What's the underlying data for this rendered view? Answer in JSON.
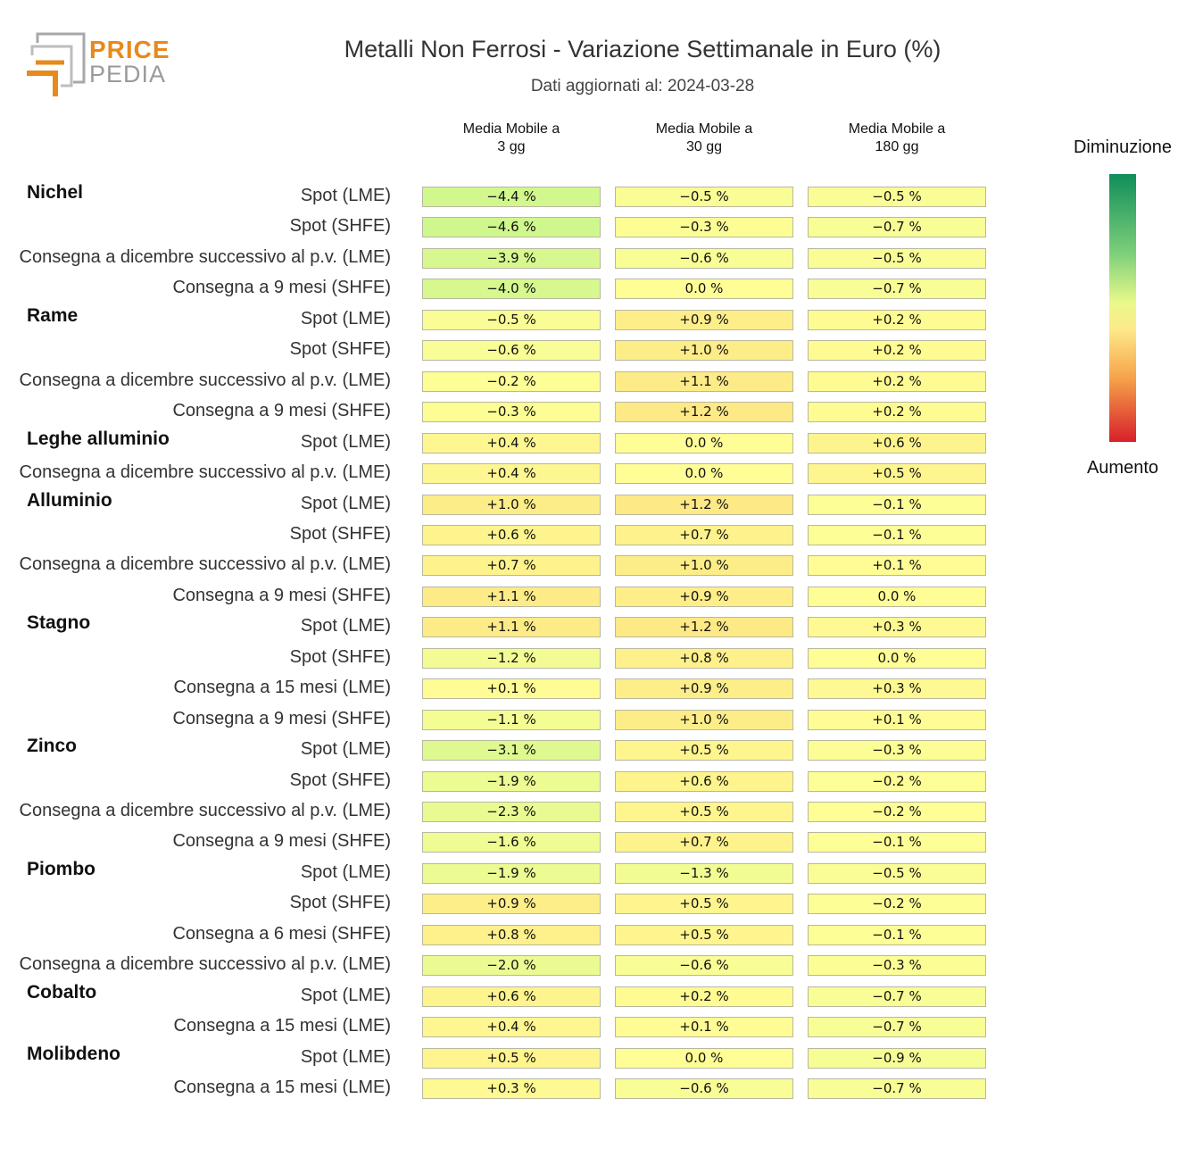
{
  "logo": {
    "word1": "PRICE",
    "word2": "PEDIA"
  },
  "chart_data": {
    "type": "table",
    "title": "Metalli Non Ferrosi - Variazione Settimanale in Euro (%)",
    "subtitle": "Dati aggiornati al: 2024-03-28",
    "columns": [
      "Media Mobile a 3 gg",
      "Media Mobile a 30 gg",
      "Media Mobile a 180 gg"
    ],
    "column_lines": [
      [
        "Media Mobile a",
        "3 gg"
      ],
      [
        "Media Mobile a",
        "30 gg"
      ],
      [
        "Media Mobile a",
        "180 gg"
      ]
    ],
    "legend": {
      "top": "Diminuzione",
      "bottom": "Aumento",
      "colors": [
        "#0f8e5a",
        "#e9f98a",
        "#fde98a",
        "#d71f2b"
      ]
    },
    "groups": [
      {
        "name": "Nichel",
        "rows": [
          {
            "label": "Spot (LME)",
            "values": [
              -4.4,
              -0.5,
              -0.5
            ]
          },
          {
            "label": "Spot (SHFE)",
            "values": [
              -4.6,
              -0.3,
              -0.7
            ]
          },
          {
            "label": "Consegna a dicembre successivo al p.v. (LME)",
            "values": [
              -3.9,
              -0.6,
              -0.5
            ]
          },
          {
            "label": "Consegna a 9 mesi (SHFE)",
            "values": [
              -4.0,
              0.0,
              -0.7
            ]
          }
        ]
      },
      {
        "name": "Rame",
        "rows": [
          {
            "label": "Spot (LME)",
            "values": [
              -0.5,
              0.9,
              0.2
            ]
          },
          {
            "label": "Spot (SHFE)",
            "values": [
              -0.6,
              1.0,
              0.2
            ]
          },
          {
            "label": "Consegna a dicembre successivo al p.v. (LME)",
            "values": [
              -0.2,
              1.1,
              0.2
            ]
          },
          {
            "label": "Consegna a 9 mesi (SHFE)",
            "values": [
              -0.3,
              1.2,
              0.2
            ]
          }
        ]
      },
      {
        "name": "Leghe alluminio",
        "rows": [
          {
            "label": "Spot (LME)",
            "values": [
              0.4,
              0.0,
              0.6
            ]
          },
          {
            "label": "Consegna a dicembre successivo al p.v. (LME)",
            "values": [
              0.4,
              0.0,
              0.5
            ]
          }
        ]
      },
      {
        "name": "Alluminio",
        "rows": [
          {
            "label": "Spot (LME)",
            "values": [
              1.0,
              1.2,
              -0.1
            ]
          },
          {
            "label": "Spot (SHFE)",
            "values": [
              0.6,
              0.7,
              -0.1
            ]
          },
          {
            "label": "Consegna a dicembre successivo al p.v. (LME)",
            "values": [
              0.7,
              1.0,
              0.1
            ]
          },
          {
            "label": "Consegna a 9 mesi (SHFE)",
            "values": [
              1.1,
              0.9,
              0.0
            ]
          }
        ]
      },
      {
        "name": "Stagno",
        "rows": [
          {
            "label": "Spot (LME)",
            "values": [
              1.1,
              1.2,
              0.3
            ]
          },
          {
            "label": "Spot (SHFE)",
            "values": [
              -1.2,
              0.8,
              0.0
            ]
          },
          {
            "label": "Consegna a 15 mesi (LME)",
            "values": [
              0.1,
              0.9,
              0.3
            ]
          },
          {
            "label": "Consegna a 9 mesi (SHFE)",
            "values": [
              -1.1,
              1.0,
              0.1
            ]
          }
        ]
      },
      {
        "name": "Zinco",
        "rows": [
          {
            "label": "Spot (LME)",
            "values": [
              -3.1,
              0.5,
              -0.3
            ]
          },
          {
            "label": "Spot (SHFE)",
            "values": [
              -1.9,
              0.6,
              -0.2
            ]
          },
          {
            "label": "Consegna a dicembre successivo al p.v. (LME)",
            "values": [
              -2.3,
              0.5,
              -0.2
            ]
          },
          {
            "label": "Consegna a 9 mesi (SHFE)",
            "values": [
              -1.6,
              0.7,
              -0.1
            ]
          }
        ]
      },
      {
        "name": "Piombo",
        "rows": [
          {
            "label": "Spot (LME)",
            "values": [
              -1.9,
              -1.3,
              -0.5
            ]
          },
          {
            "label": "Spot (SHFE)",
            "values": [
              0.9,
              0.5,
              -0.2
            ]
          },
          {
            "label": "Consegna a 6 mesi (SHFE)",
            "values": [
              0.8,
              0.5,
              -0.1
            ]
          },
          {
            "label": "Consegna a dicembre successivo al p.v. (LME)",
            "values": [
              -2.0,
              -0.6,
              -0.3
            ]
          }
        ]
      },
      {
        "name": "Cobalto",
        "rows": [
          {
            "label": "Spot (LME)",
            "values": [
              0.6,
              0.2,
              -0.7
            ]
          },
          {
            "label": "Consegna a 15 mesi (LME)",
            "values": [
              0.4,
              0.1,
              -0.7
            ]
          }
        ]
      },
      {
        "name": "Molibdeno",
        "rows": [
          {
            "label": "Spot (LME)",
            "values": [
              0.5,
              0.0,
              -0.9
            ]
          },
          {
            "label": "Consegna a 15 mesi (LME)",
            "values": [
              0.3,
              -0.6,
              -0.7
            ]
          }
        ]
      }
    ]
  }
}
